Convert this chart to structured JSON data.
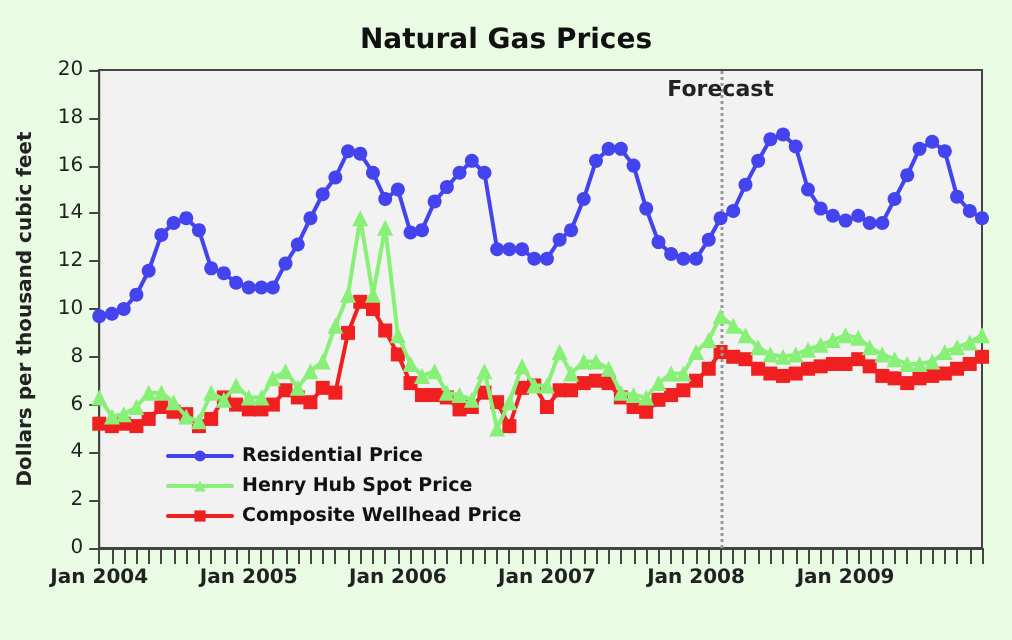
{
  "chart_data": {
    "type": "line",
    "title": "Natural Gas Prices",
    "ylabel": "Dollars per thousand cubic feet",
    "x": [
      "2004-01",
      "2004-02",
      "2004-03",
      "2004-04",
      "2004-05",
      "2004-06",
      "2004-07",
      "2004-08",
      "2004-09",
      "2004-10",
      "2004-11",
      "2004-12",
      "2005-01",
      "2005-02",
      "2005-03",
      "2005-04",
      "2005-05",
      "2005-06",
      "2005-07",
      "2005-08",
      "2005-09",
      "2005-10",
      "2005-11",
      "2005-12",
      "2006-01",
      "2006-02",
      "2006-03",
      "2006-04",
      "2006-05",
      "2006-06",
      "2006-07",
      "2006-08",
      "2006-09",
      "2006-10",
      "2006-11",
      "2006-12",
      "2007-01",
      "2007-02",
      "2007-03",
      "2007-04",
      "2007-05",
      "2007-06",
      "2007-07",
      "2007-08",
      "2007-09",
      "2007-10",
      "2007-11",
      "2007-12",
      "2008-01",
      "2008-02",
      "2008-03",
      "2008-04",
      "2008-05",
      "2008-06",
      "2008-07",
      "2008-08",
      "2008-09",
      "2008-10",
      "2008-11",
      "2008-12",
      "2009-01",
      "2009-02",
      "2009-03",
      "2009-04",
      "2009-05",
      "2009-06",
      "2009-07",
      "2009-08",
      "2009-09",
      "2009-10",
      "2009-11",
      "2009-12"
    ],
    "series": [
      {
        "name": "Residential Price",
        "color": "#4444ee",
        "marker": "circle",
        "values": [
          9.7,
          9.8,
          10.0,
          10.6,
          11.6,
          13.1,
          13.6,
          13.8,
          13.3,
          11.7,
          11.5,
          11.1,
          10.9,
          10.9,
          10.9,
          11.9,
          12.7,
          13.8,
          14.8,
          15.5,
          16.6,
          16.5,
          15.7,
          14.6,
          15.0,
          13.2,
          13.3,
          14.5,
          15.1,
          15.7,
          16.2,
          15.7,
          12.5,
          12.5,
          12.5,
          12.1,
          12.1,
          12.9,
          13.3,
          14.6,
          16.2,
          16.7,
          16.7,
          16.0,
          14.2,
          12.8,
          12.3,
          12.1,
          12.1,
          12.9,
          13.8,
          14.1,
          15.2,
          16.2,
          17.1,
          17.3,
          16.8,
          15.0,
          14.2,
          13.9,
          13.7,
          13.9,
          13.6,
          13.6,
          14.6,
          15.6,
          16.7,
          17.0,
          16.6,
          14.7,
          14.1,
          13.8
        ]
      },
      {
        "name": "Henry Hub Spot Price",
        "color": "#88f077",
        "marker": "triangle",
        "values": [
          6.3,
          5.5,
          5.6,
          5.9,
          6.5,
          6.5,
          6.1,
          5.5,
          5.3,
          6.5,
          6.2,
          6.8,
          6.3,
          6.3,
          7.1,
          7.4,
          6.7,
          7.4,
          7.8,
          9.3,
          10.6,
          13.8,
          10.6,
          13.4,
          8.9,
          7.7,
          7.2,
          7.4,
          6.5,
          6.4,
          6.2,
          7.4,
          5.0,
          6.1,
          7.6,
          6.8,
          6.8,
          8.2,
          7.3,
          7.8,
          7.8,
          7.5,
          6.5,
          6.4,
          6.3,
          6.9,
          7.3,
          7.3,
          8.2,
          8.7,
          9.7,
          9.3,
          8.9,
          8.4,
          8.1,
          8.0,
          8.1,
          8.3,
          8.5,
          8.7,
          8.9,
          8.8,
          8.4,
          8.1,
          7.9,
          7.7,
          7.7,
          7.8,
          8.2,
          8.4,
          8.6,
          8.9
        ]
      },
      {
        "name": "Composite Wellhead Price",
        "color": "#f02020",
        "marker": "square",
        "values": [
          5.2,
          5.1,
          5.2,
          5.1,
          5.4,
          5.9,
          5.7,
          5.6,
          5.1,
          5.4,
          6.3,
          6.0,
          5.8,
          5.8,
          6.0,
          6.6,
          6.3,
          6.1,
          6.7,
          6.5,
          9.0,
          10.3,
          10.0,
          9.1,
          8.1,
          6.9,
          6.4,
          6.4,
          6.3,
          5.8,
          5.9,
          6.5,
          6.1,
          5.1,
          6.7,
          6.8,
          5.9,
          6.6,
          6.6,
          6.9,
          7.0,
          6.9,
          6.3,
          5.9,
          5.7,
          6.2,
          6.4,
          6.6,
          7.0,
          7.5,
          8.2,
          8.0,
          7.9,
          7.5,
          7.3,
          7.2,
          7.3,
          7.5,
          7.6,
          7.7,
          7.7,
          7.9,
          7.6,
          7.2,
          7.1,
          6.9,
          7.1,
          7.2,
          7.3,
          7.5,
          7.7,
          8.0
        ]
      }
    ],
    "xlim": [
      "2004-01",
      "2009-12"
    ],
    "xticks": [
      {
        "value": "2004-01",
        "label": "Jan 2004"
      },
      {
        "value": "2004-02",
        "label": null
      },
      {
        "value": "2004-03",
        "label": null
      },
      {
        "value": "2004-04",
        "label": null
      },
      {
        "value": "2004-05",
        "label": null
      },
      {
        "value": "2004-06",
        "label": null
      },
      {
        "value": "2004-07",
        "label": null
      },
      {
        "value": "2004-08",
        "label": null
      },
      {
        "value": "2004-09",
        "label": null
      },
      {
        "value": "2004-10",
        "label": null
      },
      {
        "value": "2004-11",
        "label": null
      },
      {
        "value": "2004-12",
        "label": null
      },
      {
        "value": "2005-01",
        "label": "Jan 2005"
      },
      {
        "value": "2005-02",
        "label": null
      },
      {
        "value": "2005-03",
        "label": null
      },
      {
        "value": "2005-04",
        "label": null
      },
      {
        "value": "2005-05",
        "label": null
      },
      {
        "value": "2005-06",
        "label": null
      },
      {
        "value": "2005-07",
        "label": null
      },
      {
        "value": "2005-08",
        "label": null
      },
      {
        "value": "2005-09",
        "label": null
      },
      {
        "value": "2005-10",
        "label": null
      },
      {
        "value": "2005-11",
        "label": null
      },
      {
        "value": "2005-12",
        "label": null
      },
      {
        "value": "2006-01",
        "label": "Jan 2006"
      },
      {
        "value": "2006-02",
        "label": null
      },
      {
        "value": "2006-03",
        "label": null
      },
      {
        "value": "2006-04",
        "label": null
      },
      {
        "value": "2006-05",
        "label": null
      },
      {
        "value": "2006-06",
        "label": null
      },
      {
        "value": "2006-07",
        "label": null
      },
      {
        "value": "2006-08",
        "label": null
      },
      {
        "value": "2006-09",
        "label": null
      },
      {
        "value": "2006-10",
        "label": null
      },
      {
        "value": "2006-11",
        "label": null
      },
      {
        "value": "2006-12",
        "label": null
      },
      {
        "value": "2007-01",
        "label": "Jan 2007"
      },
      {
        "value": "2007-02",
        "label": null
      },
      {
        "value": "2007-03",
        "label": null
      },
      {
        "value": "2007-04",
        "label": null
      },
      {
        "value": "2007-05",
        "label": null
      },
      {
        "value": "2007-06",
        "label": null
      },
      {
        "value": "2007-07",
        "label": null
      },
      {
        "value": "2007-08",
        "label": null
      },
      {
        "value": "2007-09",
        "label": null
      },
      {
        "value": "2007-10",
        "label": null
      },
      {
        "value": "2007-11",
        "label": null
      },
      {
        "value": "2007-12",
        "label": null
      },
      {
        "value": "2008-01",
        "label": "Jan 2008"
      },
      {
        "value": "2008-02",
        "label": null
      },
      {
        "value": "2008-03",
        "label": null
      },
      {
        "value": "2008-04",
        "label": null
      },
      {
        "value": "2008-05",
        "label": null
      },
      {
        "value": "2008-06",
        "label": null
      },
      {
        "value": "2008-07",
        "label": null
      },
      {
        "value": "2008-08",
        "label": null
      },
      {
        "value": "2008-09",
        "label": null
      },
      {
        "value": "2008-10",
        "label": null
      },
      {
        "value": "2008-11",
        "label": null
      },
      {
        "value": "2008-12",
        "label": null
      },
      {
        "value": "2009-01",
        "label": "Jan 2009"
      },
      {
        "value": "2009-02",
        "label": null
      },
      {
        "value": "2009-03",
        "label": null
      },
      {
        "value": "2009-04",
        "label": null
      },
      {
        "value": "2009-05",
        "label": null
      },
      {
        "value": "2009-06",
        "label": null
      },
      {
        "value": "2009-07",
        "label": null
      },
      {
        "value": "2009-08",
        "label": null
      },
      {
        "value": "2009-09",
        "label": null
      },
      {
        "value": "2009-10",
        "label": null
      },
      {
        "value": "2009-11",
        "label": null
      },
      {
        "value": "2009-12",
        "label": null
      }
    ],
    "ylim": [
      0,
      20
    ],
    "yticks": [
      0,
      2,
      4,
      6,
      8,
      10,
      12,
      14,
      16,
      18,
      20
    ],
    "ref_lines": [
      {
        "axis": "x",
        "value": "2008-03",
        "label": "Forecast",
        "color": "#999999",
        "line_style": "dotted"
      }
    ],
    "grid": false,
    "legend": "bottom left",
    "line_style": "solid"
  }
}
